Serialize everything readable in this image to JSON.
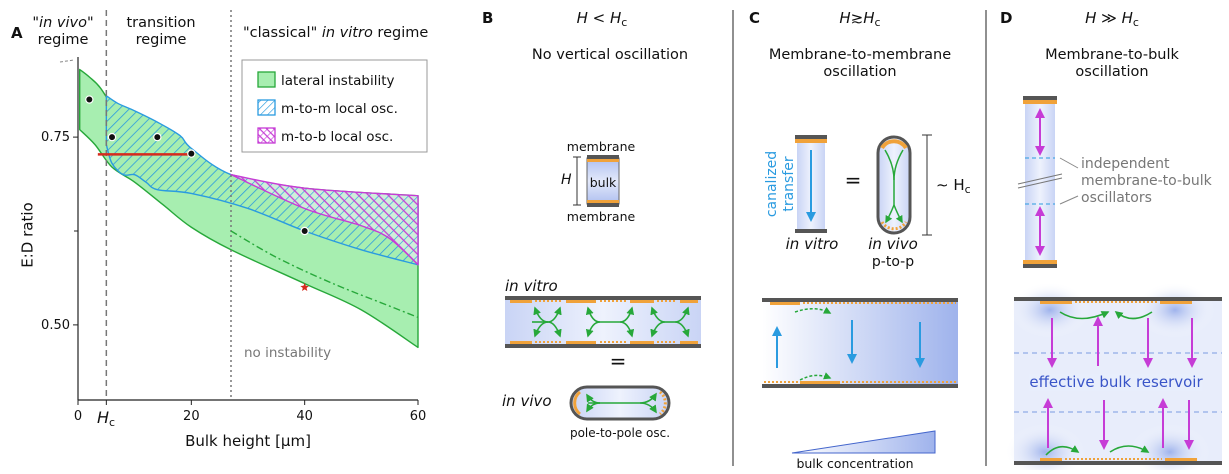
{
  "colors": {
    "green": "#27a83a",
    "green_fill": "#a7eeb0",
    "blue": "#2a9be0",
    "magenta": "#c63cd6",
    "orange": "#f0a23a",
    "red": "#d62b1e",
    "gray_text": "#777777",
    "dark_line": "#555555"
  },
  "panel_labels": [
    "A",
    "B",
    "C",
    "D"
  ],
  "panelA": {
    "regime_invivo_line1": "in vivo",
    "regime_invivo_line2": "regime",
    "regime_transition_line1": "transition",
    "regime_transition_line2": "regime",
    "regime_classical_prefix": "\"classical\" ",
    "regime_classical_italic": "in vitro",
    "regime_classical_suffix": " regime",
    "legend": [
      "lateral instability",
      "m-to-m local osc.",
      "m-to-b local osc."
    ],
    "no_instability": "no instability",
    "hc_label": "H",
    "hc_sub": "c"
  },
  "chart_data": {
    "type": "area",
    "xlabel": "Bulk height [μm]",
    "ylabel": "E:D ratio",
    "xlim": [
      0,
      60
    ],
    "ylim": [
      0.4,
      0.85
    ],
    "x_ticks": [
      "0",
      "20",
      "40",
      "60"
    ],
    "y_ticks": [
      "0.50",
      "0.75"
    ],
    "vertical_markers": [
      {
        "x": 5,
        "style": "dashed",
        "label": "Hc"
      },
      {
        "x": 27,
        "style": "dotted"
      }
    ],
    "series": [
      {
        "name": "lateral instability",
        "upper": [
          [
            0.3,
            0.84
          ],
          [
            2,
            0.83
          ],
          [
            4,
            0.815
          ],
          [
            7,
            0.78
          ],
          [
            10,
            0.755
          ],
          [
            14,
            0.74
          ],
          [
            20,
            0.72
          ],
          [
            27,
            0.7
          ],
          [
            40,
            0.682
          ],
          [
            60,
            0.672
          ]
        ],
        "lower": [
          [
            0.3,
            0.76
          ],
          [
            3,
            0.74
          ],
          [
            6,
            0.71
          ],
          [
            10,
            0.69
          ],
          [
            15,
            0.66
          ],
          [
            20,
            0.63
          ],
          [
            27,
            0.6
          ],
          [
            40,
            0.555
          ],
          [
            50,
            0.52
          ],
          [
            60,
            0.47
          ]
        ]
      },
      {
        "name": "m-to-m local osc.",
        "upper": [
          [
            5,
            0.805
          ],
          [
            7,
            0.795
          ],
          [
            10,
            0.785
          ],
          [
            14,
            0.77
          ],
          [
            18,
            0.752
          ],
          [
            20,
            0.735
          ],
          [
            27,
            0.7
          ],
          [
            40,
            0.675
          ],
          [
            60,
            0.662
          ]
        ],
        "lower": [
          [
            5,
            0.74
          ],
          [
            6,
            0.715
          ],
          [
            8,
            0.7
          ],
          [
            10,
            0.7
          ],
          [
            12,
            0.69
          ],
          [
            14,
            0.68
          ],
          [
            20,
            0.675
          ],
          [
            30,
            0.655
          ],
          [
            40,
            0.625
          ],
          [
            50,
            0.6
          ],
          [
            60,
            0.58
          ]
        ]
      },
      {
        "name": "m-to-b local osc.",
        "upper": [
          [
            27,
            0.7
          ],
          [
            40,
            0.682
          ],
          [
            60,
            0.672
          ]
        ],
        "lower": [
          [
            27,
            0.7
          ],
          [
            40,
            0.655
          ],
          [
            50,
            0.632
          ],
          [
            55,
            0.615
          ],
          [
            60,
            0.58
          ]
        ]
      }
    ],
    "points": [
      [
        2,
        0.8
      ],
      [
        6,
        0.75
      ],
      [
        14,
        0.75
      ],
      [
        20,
        0.728
      ],
      [
        40,
        0.625
      ]
    ],
    "star_point": [
      40,
      0.55
    ],
    "red_segment": {
      "x": [
        3.5,
        20
      ],
      "y": 0.727
    },
    "dashdot_curve": [
      [
        27,
        0.625
      ],
      [
        35,
        0.59
      ],
      [
        45,
        0.555
      ],
      [
        55,
        0.525
      ],
      [
        60,
        0.51
      ]
    ]
  },
  "panelB": {
    "condition_lhs": "H",
    "condition_op": " < ",
    "condition_rhs": "H",
    "condition_sub": "c",
    "title": "No vertical oscillation",
    "membrane_top": "membrane",
    "membrane_bottom": "membrane",
    "h_label": "H",
    "bulk_label": "bulk",
    "in_vitro": "in vitro",
    "equals": "=",
    "in_vivo": "in vivo",
    "pole_caption": "pole-to-pole osc."
  },
  "panelC": {
    "condition_lhs": "H",
    "condition_op": "≳",
    "condition_rhs": "H",
    "condition_sub": "c",
    "title_line1": "Membrane-to-membrane",
    "title_line2": "oscillation",
    "canalized_line1": "canalized",
    "canalized_line2": "transfer",
    "equals": "=",
    "approx": "∼ H",
    "approx_sub": "c",
    "in_vitro": "in vitro",
    "in_vivo": "in vivo",
    "ptop": "p-to-p",
    "bulk_concentration": "bulk concentration"
  },
  "panelD": {
    "condition_lhs": "H",
    "condition_op": " ≫ ",
    "condition_rhs": "H",
    "condition_sub": "c",
    "title_line1": "Membrane-to-bulk",
    "title_line2": "oscillation",
    "annotation": [
      "independent",
      "membrane-to-bulk",
      "oscillators"
    ],
    "reservoir": "effective bulk reservoir"
  }
}
